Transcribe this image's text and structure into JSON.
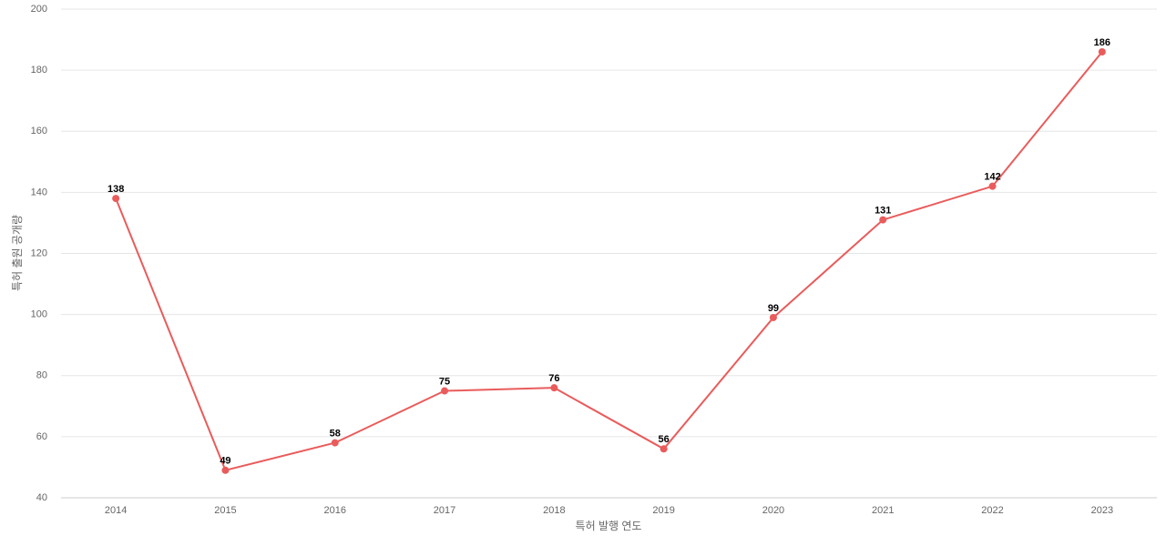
{
  "chart_data": {
    "type": "line",
    "x_label": "특허 발행 연도",
    "y_label": "특허 출원 공개량",
    "categories": [
      "2014",
      "2015",
      "2016",
      "2017",
      "2018",
      "2019",
      "2020",
      "2021",
      "2022",
      "2023"
    ],
    "values": [
      138,
      49,
      58,
      75,
      76,
      56,
      99,
      131,
      142,
      186
    ],
    "color": "#ea5b5b",
    "ylim": [
      40,
      200
    ],
    "yticks": [
      40,
      60,
      80,
      100,
      120,
      140,
      160,
      180,
      200
    ],
    "grid": true
  }
}
